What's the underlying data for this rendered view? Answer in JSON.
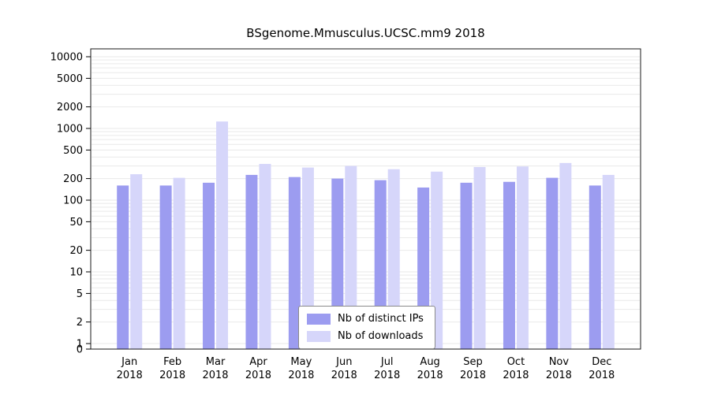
{
  "title": "BSgenome.Mmusculus.UCSC.mm9 2018",
  "colors": {
    "distinct_ips": "#9c9cf0",
    "downloads": "#d6d6fa",
    "grid": "#e9e9e9",
    "frame": "#1a1a1a",
    "tick": "#000000",
    "text": "#000000"
  },
  "legend": {
    "items": [
      {
        "label": "Nb of distinct IPs",
        "color_key": "distinct_ips"
      },
      {
        "label": "Nb of downloads",
        "color_key": "downloads"
      }
    ]
  },
  "chart_data": {
    "type": "bar",
    "title": "BSgenome.Mmusculus.UCSC.mm9 2018",
    "year": "2018",
    "categories": [
      "Jan",
      "Feb",
      "Mar",
      "Apr",
      "May",
      "Jun",
      "Jul",
      "Aug",
      "Sep",
      "Oct",
      "Nov",
      "Dec"
    ],
    "yscale": "log",
    "yticks": [
      0,
      1,
      2,
      5,
      10,
      20,
      50,
      100,
      200,
      500,
      1000,
      2000,
      5000,
      10000
    ],
    "ylim": [
      0,
      13000
    ],
    "grid": true,
    "legend_position": "bottom-center-inside",
    "series": [
      {
        "name": "Nb of distinct IPs",
        "values": [
          160,
          160,
          175,
          225,
          210,
          200,
          190,
          150,
          175,
          180,
          205,
          160
        ]
      },
      {
        "name": "Nb of downloads",
        "values": [
          230,
          205,
          1250,
          320,
          285,
          300,
          270,
          250,
          290,
          295,
          330,
          225
        ]
      }
    ]
  }
}
